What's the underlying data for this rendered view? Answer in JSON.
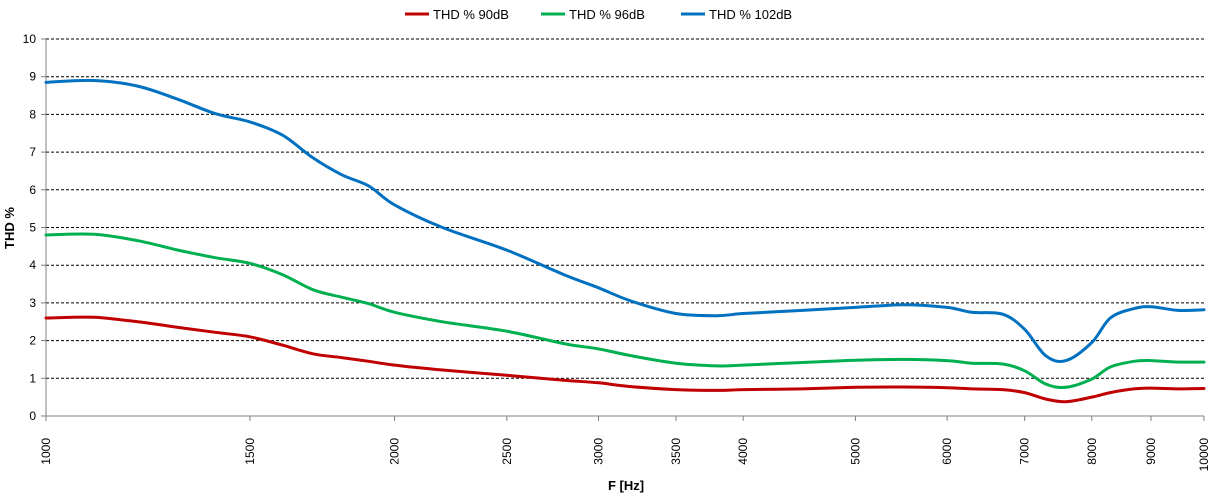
{
  "chart_data": {
    "type": "line",
    "xlabel": "F [Hz]",
    "ylabel": "THD %",
    "xscale": "log",
    "xlim": [
      1000,
      10000
    ],
    "ylim": [
      0,
      10
    ],
    "grid": true,
    "legend_position": "top",
    "xticks": [
      1000,
      1500,
      2000,
      2500,
      3000,
      3500,
      4000,
      5000,
      6000,
      7000,
      8000,
      9000,
      10000
    ],
    "xtick_labels": [
      "1000",
      "1500",
      "2000",
      "2500",
      "3000",
      "3500",
      "4000",
      "5000",
      "6000",
      "7000",
      "8000",
      "9000",
      "10000"
    ],
    "yticks": [
      0,
      1,
      2,
      3,
      4,
      5,
      6,
      7,
      8,
      9,
      10
    ],
    "ytick_labels": [
      "0",
      "1",
      "2",
      "3",
      "4",
      "5",
      "6",
      "7",
      "8",
      "9",
      "10"
    ],
    "x": [
      1000,
      1100,
      1200,
      1300,
      1400,
      1500,
      1600,
      1700,
      1800,
      1900,
      2000,
      2200,
      2500,
      2800,
      3000,
      3200,
      3500,
      3800,
      4000,
      4500,
      5000,
      5500,
      6000,
      6300,
      6700,
      7000,
      7300,
      7600,
      8000,
      8300,
      8700,
      9000,
      9500,
      10000
    ],
    "series": [
      {
        "name": "THD % 90dB",
        "color": "#c00000",
        "values": [
          2.6,
          2.62,
          2.5,
          2.35,
          2.22,
          2.1,
          1.88,
          1.65,
          1.55,
          1.45,
          1.35,
          1.22,
          1.08,
          0.95,
          0.88,
          0.78,
          0.7,
          0.68,
          0.7,
          0.72,
          0.76,
          0.77,
          0.75,
          0.72,
          0.7,
          0.62,
          0.45,
          0.38,
          0.5,
          0.62,
          0.72,
          0.74,
          0.72,
          0.73
        ]
      },
      {
        "name": "THD % 96dB",
        "color": "#00b050",
        "values": [
          4.8,
          4.82,
          4.65,
          4.4,
          4.2,
          4.05,
          3.75,
          3.35,
          3.15,
          2.98,
          2.75,
          2.5,
          2.25,
          1.92,
          1.78,
          1.6,
          1.4,
          1.33,
          1.35,
          1.42,
          1.48,
          1.5,
          1.47,
          1.4,
          1.38,
          1.2,
          0.85,
          0.76,
          0.98,
          1.3,
          1.45,
          1.47,
          1.43,
          1.43
        ]
      },
      {
        "name": "THD % 102dB",
        "color": "#0070c0",
        "values": [
          8.85,
          8.9,
          8.75,
          8.4,
          8.02,
          7.8,
          7.45,
          6.85,
          6.4,
          6.1,
          5.6,
          5.0,
          4.4,
          3.75,
          3.4,
          3.05,
          2.72,
          2.66,
          2.72,
          2.8,
          2.88,
          2.95,
          2.88,
          2.75,
          2.7,
          2.3,
          1.6,
          1.47,
          1.95,
          2.6,
          2.85,
          2.9,
          2.8,
          2.82
        ]
      }
    ]
  }
}
